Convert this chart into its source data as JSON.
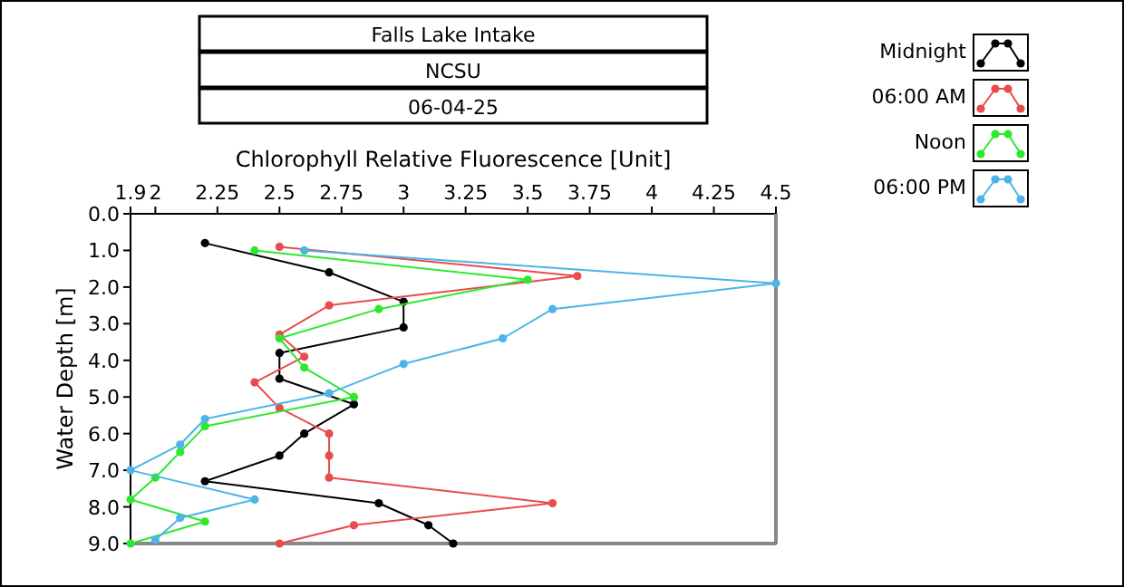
{
  "chart_data": {
    "type": "line",
    "title": "Falls Lake Intake",
    "subtitle": "NCSU",
    "annotations": [
      "06-04-25"
    ],
    "xlabel": "Chlorophyll Relative Fluorescence [Unit]",
    "ylabel": "Water Depth [m]",
    "xlim": [
      1.9,
      4.5
    ],
    "xticks": [
      1.9,
      2,
      2.25,
      2.5,
      2.75,
      3,
      3.25,
      3.5,
      3.75,
      4,
      4.25,
      4.5
    ],
    "ylim": [
      9,
      0
    ],
    "yticks": [
      {
        "value": 0,
        "label": "0.0"
      },
      {
        "value": 1,
        "label": "1.0"
      },
      {
        "value": 2,
        "label": "2.0"
      },
      {
        "value": 3,
        "label": "3.0"
      },
      {
        "value": 4,
        "label": "4.0"
      },
      {
        "value": 5,
        "label": "5.0"
      },
      {
        "value": 6,
        "label": "6.0"
      },
      {
        "value": 7,
        "label": "7.0"
      },
      {
        "value": 8,
        "label": "8.0"
      },
      {
        "value": 9,
        "label": "9.0"
      }
    ],
    "grid": false,
    "legend": "top right",
    "marker": "circle",
    "line_style": "solid",
    "series": [
      {
        "name": "Midnight",
        "color": "#000000",
        "x": [
          2.2,
          2.7,
          3.0,
          3.0,
          2.5,
          2.5,
          2.8,
          2.6,
          2.5,
          2.2,
          2.9,
          3.1,
          3.2
        ],
        "values": [
          0.8,
          1.6,
          2.4,
          3.1,
          3.8,
          4.5,
          5.2,
          6.0,
          6.6,
          7.3,
          7.9,
          8.5,
          9.0
        ]
      },
      {
        "name": "06:00 AM",
        "color": "#e84c4c",
        "x": [
          2.5,
          3.7,
          2.7,
          2.5,
          2.6,
          2.4,
          2.5,
          2.7,
          2.7,
          2.7,
          3.6,
          2.8,
          2.5
        ],
        "values": [
          0.9,
          1.7,
          2.5,
          3.3,
          3.9,
          4.6,
          5.3,
          6.0,
          6.6,
          7.2,
          7.9,
          8.5,
          9.0
        ]
      },
      {
        "name": "Noon",
        "color": "#2ee82e",
        "x": [
          2.4,
          3.5,
          2.9,
          2.5,
          2.6,
          2.8,
          2.2,
          2.1,
          2.0,
          1.9,
          2.2,
          1.9
        ],
        "values": [
          1.0,
          1.8,
          2.6,
          3.4,
          4.2,
          5.0,
          5.8,
          6.5,
          7.2,
          7.8,
          8.4,
          9.0
        ]
      },
      {
        "name": "06:00 PM",
        "color": "#4cb4e8",
        "x": [
          2.6,
          4.5,
          3.6,
          3.4,
          3.0,
          2.7,
          2.2,
          2.1,
          1.9,
          2.4,
          2.1,
          2.0
        ],
        "values": [
          1.0,
          1.9,
          2.6,
          3.4,
          4.1,
          4.9,
          5.6,
          6.3,
          7.0,
          7.8,
          8.3,
          8.9
        ]
      }
    ]
  }
}
